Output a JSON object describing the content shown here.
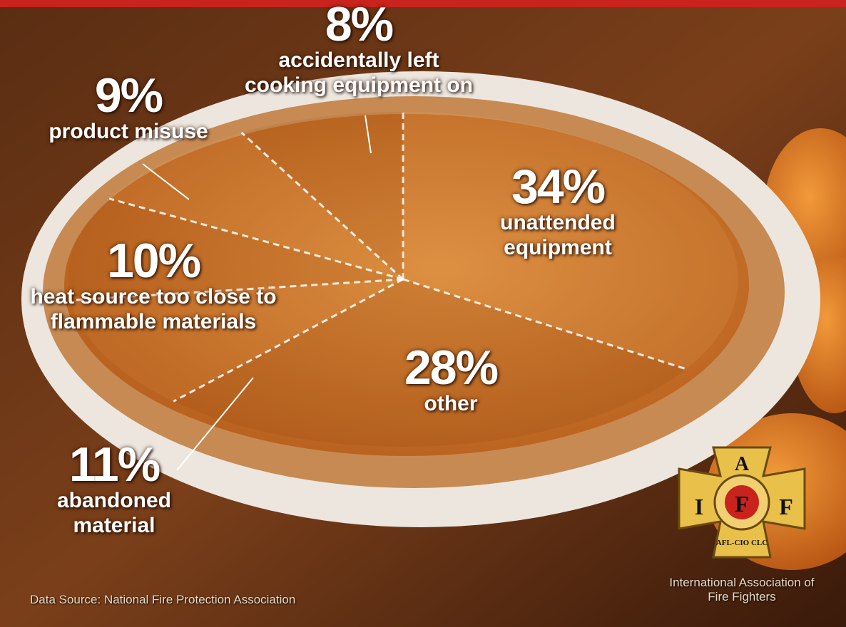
{
  "chart_data": {
    "type": "pie",
    "categories": [
      "unattended equipment",
      "other",
      "abandoned material",
      "heat source too close to flammable materials",
      "product misuse",
      "accidentally left cooking equipment on"
    ],
    "values": [
      34,
      28,
      11,
      10,
      9,
      8
    ],
    "value_labels": [
      "34%",
      "28%",
      "11%",
      "10%",
      "9%",
      "8%"
    ],
    "source": "Data Source: National Fire Protection Association"
  },
  "logo": {
    "letters": [
      "A",
      "I",
      "F",
      "F"
    ],
    "seal": "AFL-CIO CLC",
    "name": "International Association of Fire Fighters"
  }
}
